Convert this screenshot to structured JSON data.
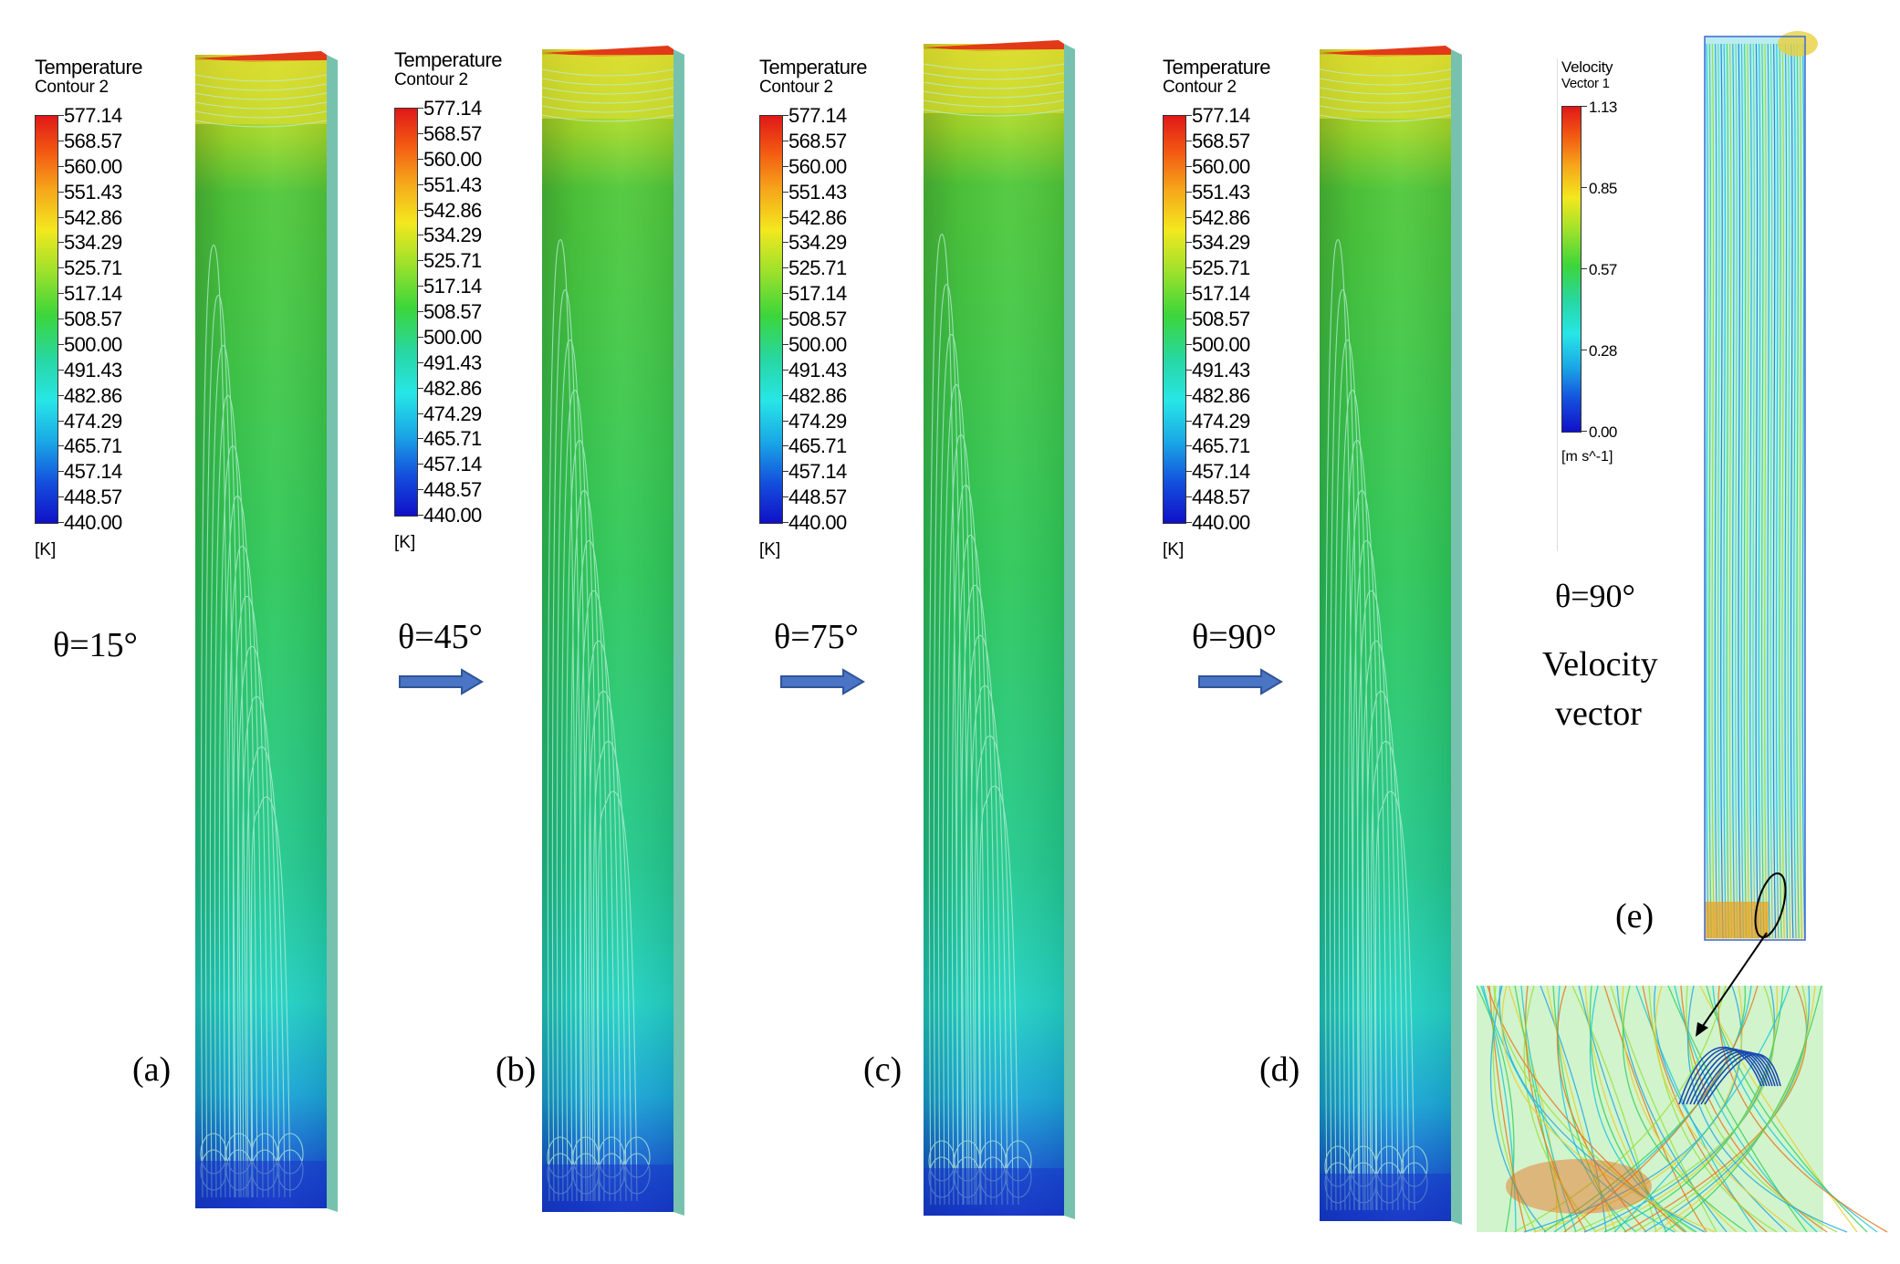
{
  "temperature_legend": {
    "title": "Temperature",
    "subtitle": "Contour 2",
    "unit": "[K]",
    "ticks": [
      "577.14",
      "568.57",
      "560.00",
      "551.43",
      "542.86",
      "534.29",
      "525.71",
      "517.14",
      "508.57",
      "500.00",
      "491.43",
      "482.86",
      "474.29",
      "465.71",
      "457.14",
      "448.57",
      "440.00"
    ]
  },
  "velocity_legend": {
    "title": "Velocity",
    "subtitle": "Vector 1",
    "unit": "[m s^-1]",
    "ticks": [
      "1.13",
      "0.85",
      "0.57",
      "0.28",
      "0.00"
    ]
  },
  "panels": [
    {
      "angle": "θ=15°",
      "label": "(a)"
    },
    {
      "angle": "θ=45°",
      "label": "(b)"
    },
    {
      "angle": "θ=75°",
      "label": "(c)"
    },
    {
      "angle": "θ=90°",
      "label": "(d)"
    }
  ],
  "panel_e": {
    "angle": "θ=90°",
    "caption_line1": "Velocity",
    "caption_line2": "vector",
    "label": "(e)"
  },
  "colors": {
    "arrow": "#4a74c4",
    "arrow_stroke": "#2f5597"
  }
}
